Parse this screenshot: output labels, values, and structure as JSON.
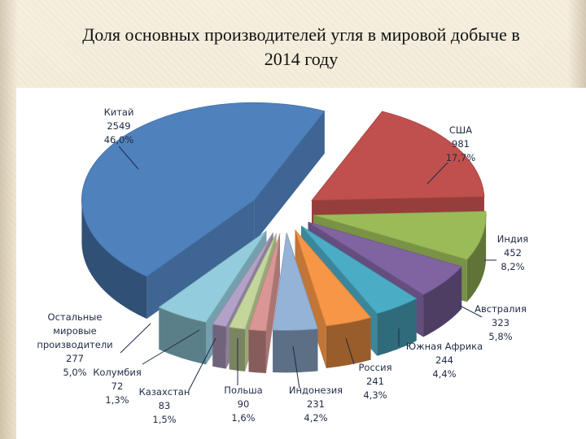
{
  "title": "Доля основных производителей угля в мировой добыче в 2014 году",
  "chart_data": {
    "type": "pie",
    "title": "Доля основных производителей угля в мировой добыче в 2014 году",
    "exploded": true,
    "style": "3d",
    "slices": [
      {
        "name": "США",
        "value": 981,
        "percent": "17,7%",
        "color": "#c0504d"
      },
      {
        "name": "Индия",
        "value": 452,
        "percent": "8,2%",
        "color": "#9bbb59"
      },
      {
        "name": "Австралия",
        "value": 323,
        "percent": "5,8%",
        "color": "#8064a2"
      },
      {
        "name": "Южная Африка",
        "value": 244,
        "percent": "4,4%",
        "color": "#4bacc6"
      },
      {
        "name": "Россия",
        "value": 241,
        "percent": "4,3%",
        "color": "#f79646"
      },
      {
        "name": "Индонезия",
        "value": 231,
        "percent": "4,2%",
        "color": "#95b3d7"
      },
      {
        "name": "Польша",
        "value": 90,
        "percent": "1,6%",
        "color": "#d99694"
      },
      {
        "name": "Казахстан",
        "value": 83,
        "percent": "1,5%",
        "color": "#c3d69b"
      },
      {
        "name": "Колумбия",
        "value": 72,
        "percent": "1,3%",
        "color": "#b3a2c7"
      },
      {
        "name": "Остальные мировые производители",
        "value": 277,
        "percent": "5,0%",
        "color": "#93cddd"
      },
      {
        "name": "Китай",
        "value": 2549,
        "percent": "46,0%",
        "color": "#4f81bd"
      }
    ]
  },
  "labels": {
    "china": {
      "l1": "Китай",
      "l2": "2549",
      "l3": "46,0%"
    },
    "usa": {
      "l1": "США",
      "l2": "981",
      "l3": "17,7%"
    },
    "india": {
      "l1": "Индия",
      "l2": "452",
      "l3": "8,2%"
    },
    "australia": {
      "l1": "Австралия",
      "l2": "323",
      "l3": "5,8%"
    },
    "south_africa": {
      "l1": "Южная Африка",
      "l2": "244",
      "l3": "4,4%"
    },
    "russia": {
      "l1": "Россия",
      "l2": "241",
      "l3": "4,3%"
    },
    "indonesia": {
      "l1": "Индонезия",
      "l2": "231",
      "l3": "4,2%"
    },
    "poland": {
      "l1": "Польша",
      "l2": "90",
      "l3": "1,6%"
    },
    "kazakhstan": {
      "l1": "Казахстан",
      "l2": "83",
      "l3": "1,5%"
    },
    "colombia": {
      "l1": "Колумбия",
      "l2": "72",
      "l3": "1,3%"
    },
    "others": {
      "l1": "Остальные",
      "l2": "мировые",
      "l3": "производители",
      "l4": "277",
      "l5": "5,0%"
    }
  }
}
